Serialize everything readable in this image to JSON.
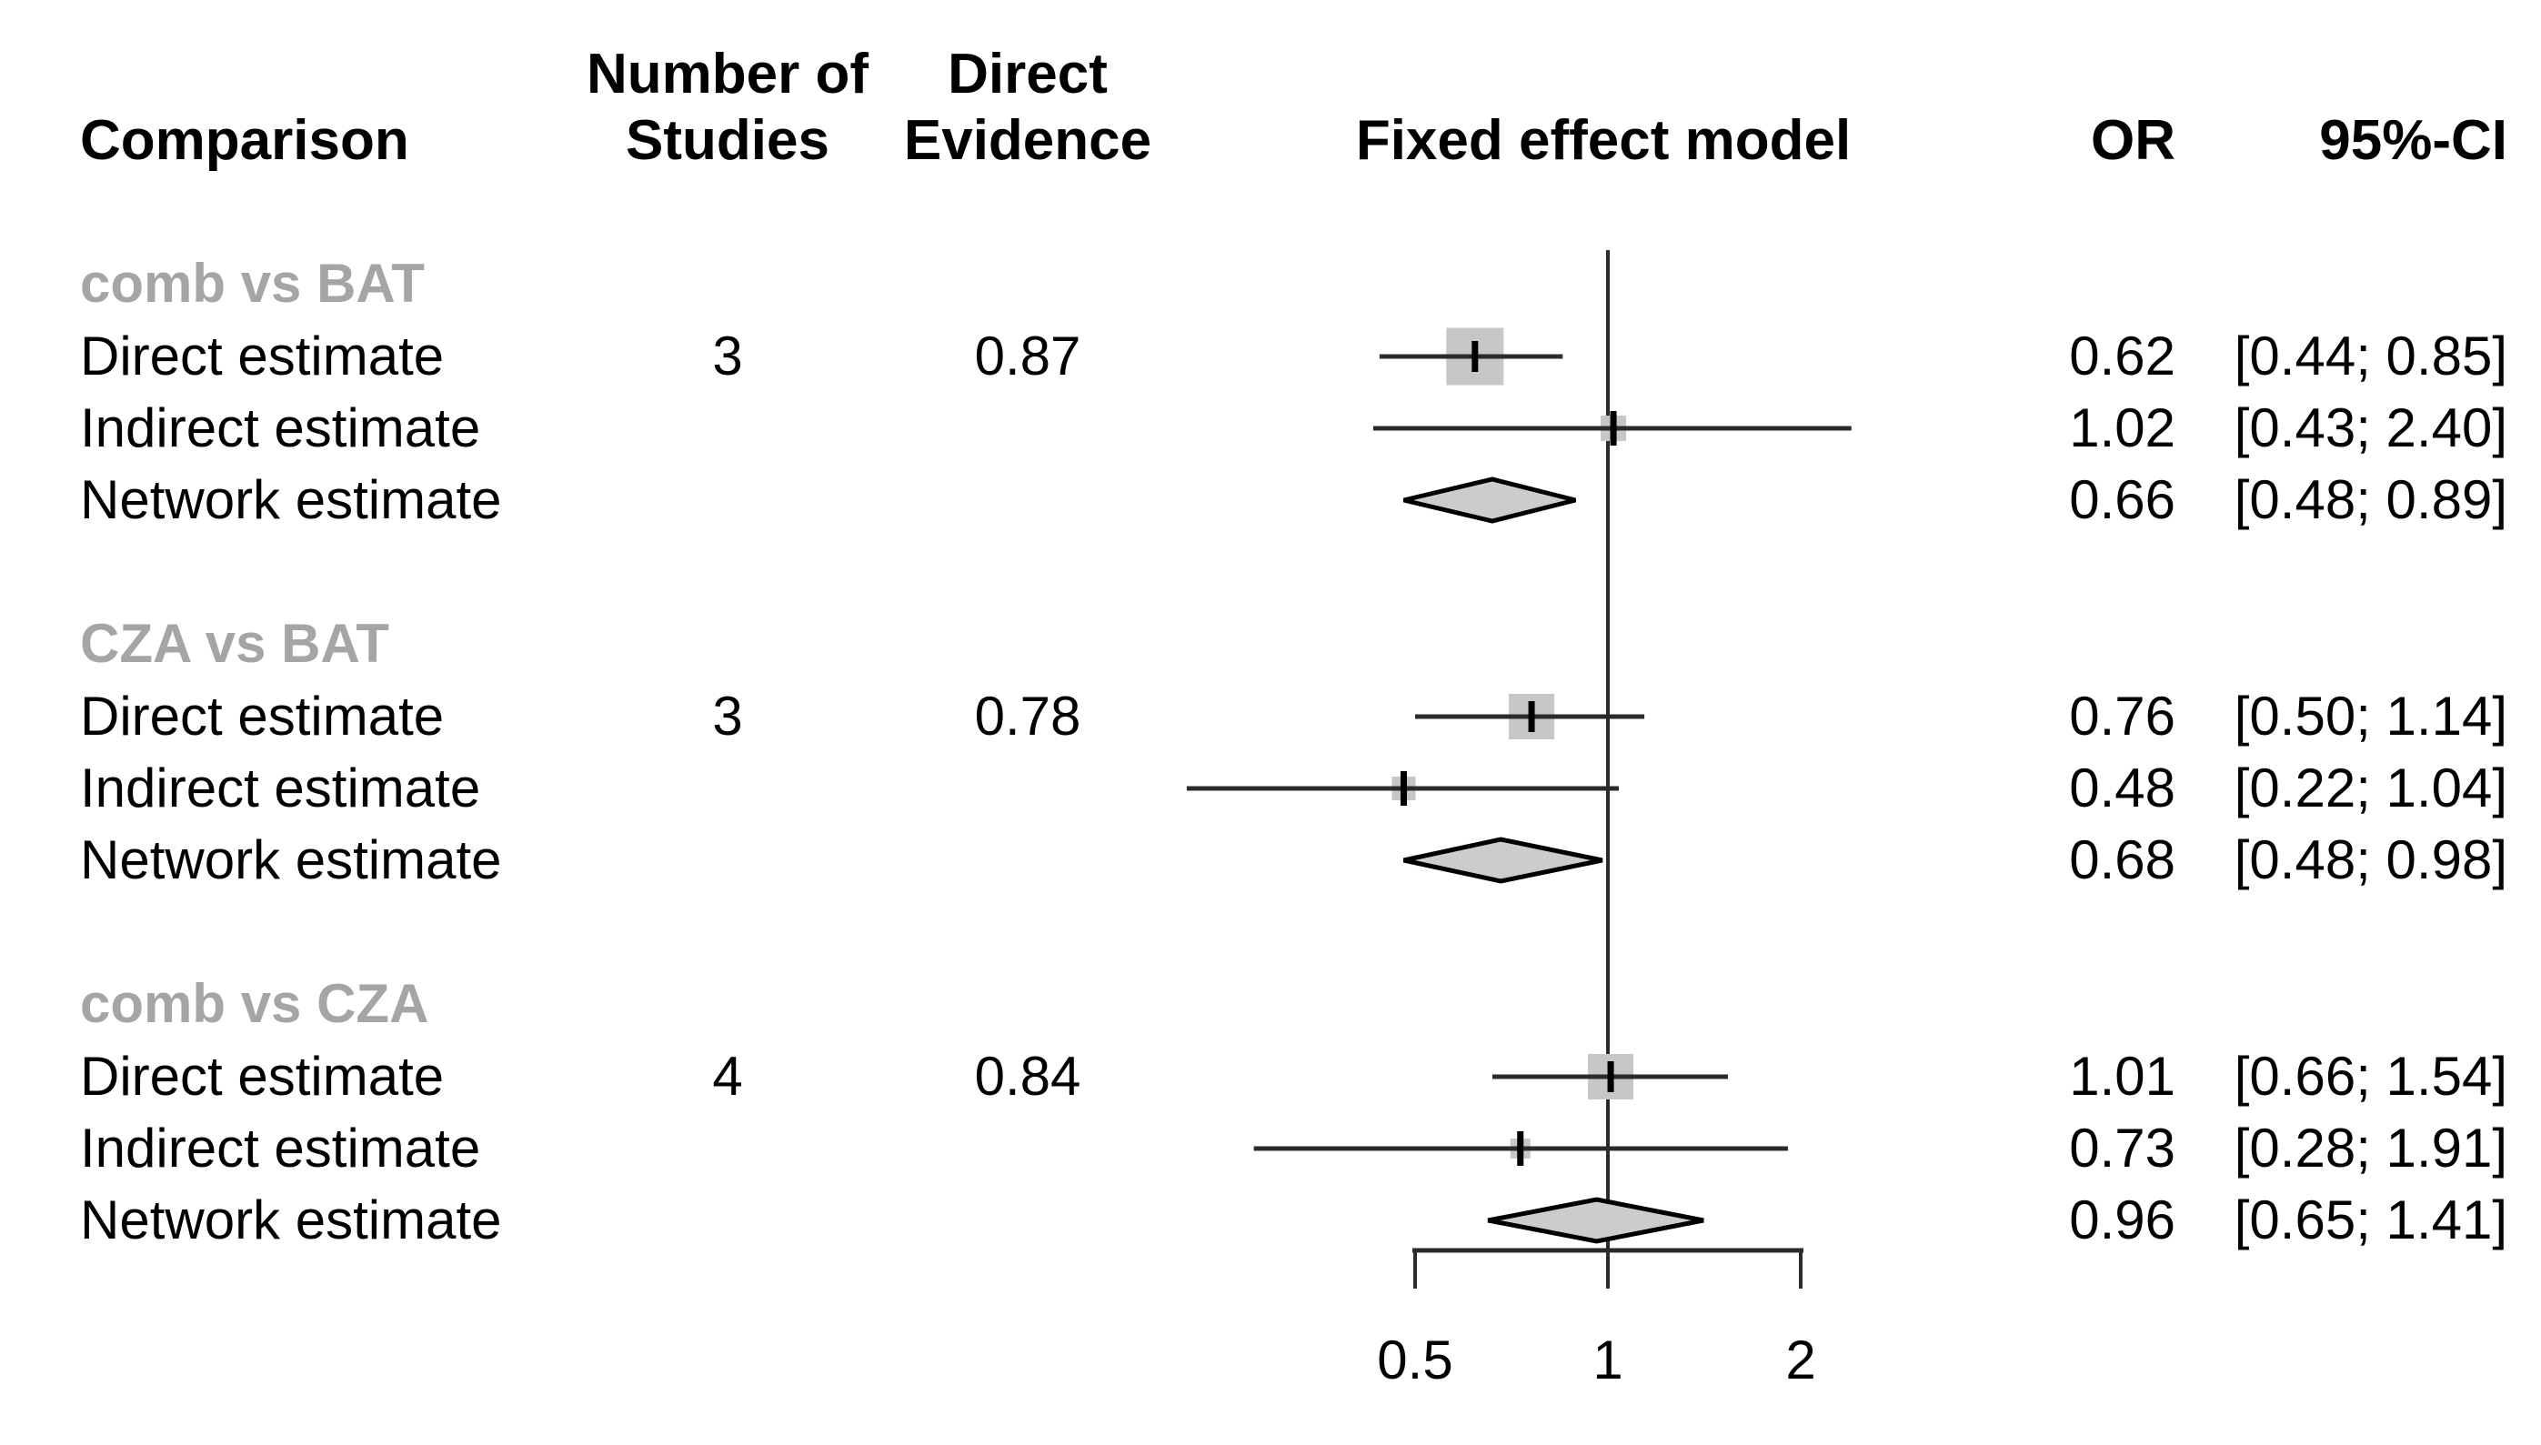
{
  "header": {
    "comparison": "Comparison",
    "studies_line1": "Number of",
    "studies_line2": "Studies",
    "evidence_line1": "Direct",
    "evidence_line2": "Evidence",
    "model": "Fixed effect model",
    "or": "OR",
    "ci": "95%-CI"
  },
  "colors": {
    "text": "#000000",
    "group_label": "#a5a5a5",
    "line": "#2b2b2b",
    "square_fill": "#c7c7c7",
    "tick_mark": "#000000",
    "diamond_fill": "#cccccc",
    "diamond_stroke": "#000000",
    "background": "#ffffff"
  },
  "chart_data": {
    "type": "forest",
    "effect_measure": "OR",
    "model": "Fixed effect model",
    "x_scale": "log",
    "ref_line": 1,
    "x_ticks": [
      {
        "label": "0.5",
        "value": 0.5
      },
      {
        "label": "1",
        "value": 1
      },
      {
        "label": "2",
        "value": 2
      }
    ],
    "groups": [
      {
        "label": "comb vs BAT",
        "rows": [
          {
            "label": "Direct estimate",
            "n_studies": "3",
            "direct_evidence": "0.87",
            "or": 0.62,
            "ci_low": 0.44,
            "ci_high": 0.85,
            "or_text": "0.62",
            "ci_text": "[0.44; 0.85]",
            "marker": "square",
            "size": 63
          },
          {
            "label": "Indirect estimate",
            "n_studies": "",
            "direct_evidence": "",
            "or": 1.02,
            "ci_low": 0.43,
            "ci_high": 2.4,
            "or_text": "1.02",
            "ci_text": "[0.43; 2.40]",
            "marker": "square",
            "size": 28
          },
          {
            "label": "Network estimate",
            "n_studies": "",
            "direct_evidence": "",
            "or": 0.66,
            "ci_low": 0.48,
            "ci_high": 0.89,
            "or_text": "0.66",
            "ci_text": "[0.48; 0.89]",
            "marker": "diamond",
            "size": 23
          }
        ]
      },
      {
        "label": "CZA vs BAT",
        "rows": [
          {
            "label": "Direct estimate",
            "n_studies": "3",
            "direct_evidence": "0.78",
            "or": 0.76,
            "ci_low": 0.5,
            "ci_high": 1.14,
            "or_text": "0.76",
            "ci_text": "[0.50; 1.14]",
            "marker": "square",
            "size": 50
          },
          {
            "label": "Indirect estimate",
            "n_studies": "",
            "direct_evidence": "",
            "or": 0.48,
            "ci_low": 0.22,
            "ci_high": 1.04,
            "or_text": "0.48",
            "ci_text": "[0.22; 1.04]",
            "marker": "square",
            "size": 26
          },
          {
            "label": "Network estimate",
            "n_studies": "",
            "direct_evidence": "",
            "or": 0.68,
            "ci_low": 0.48,
            "ci_high": 0.98,
            "or_text": "0.68",
            "ci_text": "[0.48; 0.98]",
            "marker": "diamond",
            "size": 23
          }
        ]
      },
      {
        "label": "comb vs CZA",
        "rows": [
          {
            "label": "Direct estimate",
            "n_studies": "4",
            "direct_evidence": "0.84",
            "or": 1.01,
            "ci_low": 0.66,
            "ci_high": 1.54,
            "or_text": "1.01",
            "ci_text": "[0.66; 1.54]",
            "marker": "square",
            "size": 50
          },
          {
            "label": "Indirect estimate",
            "n_studies": "",
            "direct_evidence": "",
            "or": 0.73,
            "ci_low": 0.28,
            "ci_high": 1.91,
            "or_text": "0.73",
            "ci_text": "[0.28; 1.91]",
            "marker": "square",
            "size": 22
          },
          {
            "label": "Network estimate",
            "n_studies": "",
            "direct_evidence": "",
            "or": 0.96,
            "ci_low": 0.65,
            "ci_high": 1.41,
            "or_text": "0.96",
            "ci_text": "[0.65; 1.41]",
            "marker": "diamond",
            "size": 23
          }
        ]
      }
    ]
  }
}
